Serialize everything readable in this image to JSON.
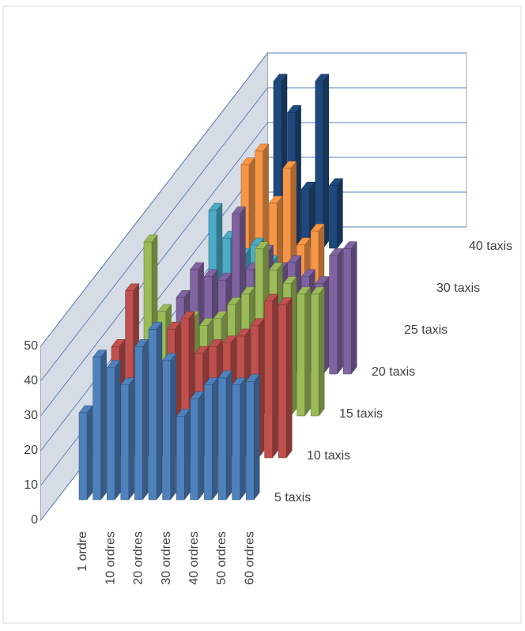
{
  "chart_data": {
    "type": "bar3d",
    "categories": [
      "1 ordre",
      null,
      "10 ordres",
      null,
      "20 ordres",
      null,
      "30 ordres",
      null,
      "40 ordres",
      null,
      "50 ordres",
      null,
      "60 ordres"
    ],
    "series": [
      {
        "name": "5 taxis",
        "color": "#4f81bd",
        "values": [
          25,
          41,
          38,
          33,
          44,
          49,
          40,
          24,
          29,
          33,
          35,
          33,
          34
        ]
      },
      {
        "name": "10 taxis",
        "color": "#c0504d",
        "values": [
          32,
          48,
          28,
          26,
          37,
          40,
          30,
          32,
          33,
          35,
          38,
          45,
          44
        ]
      },
      {
        "name": "15 taxis",
        "color": "#9bbb59",
        "values": [
          50,
          30,
          25,
          28,
          26,
          28,
          32,
          35,
          48,
          42,
          38,
          35,
          35
        ]
      },
      {
        "name": "20 taxis",
        "color": "#8064a2",
        "values": [
          22,
          30,
          28,
          27,
          46,
          30,
          35,
          30,
          32,
          28,
          26,
          34,
          36
        ]
      },
      {
        "name": "25 taxis",
        "color": "#4bacc6",
        "values": [
          35,
          27,
          22,
          25,
          20,
          null,
          null,
          null,
          null,
          null,
          null,
          null,
          null
        ]
      },
      {
        "name": "30 taxis",
        "color": "#f79646",
        "values": [
          36,
          40,
          25,
          35,
          13,
          17,
          null,
          null,
          null,
          null,
          null,
          null,
          null
        ]
      },
      {
        "name": "40 taxis",
        "color": "#1f497d",
        "values": [
          48,
          39,
          17,
          48,
          18,
          null,
          null,
          null,
          null,
          null,
          null,
          null,
          null
        ]
      }
    ],
    "ylim": [
      0,
      50
    ],
    "yticks": [
      0,
      10,
      20,
      30,
      40,
      50
    ],
    "grid": true
  }
}
